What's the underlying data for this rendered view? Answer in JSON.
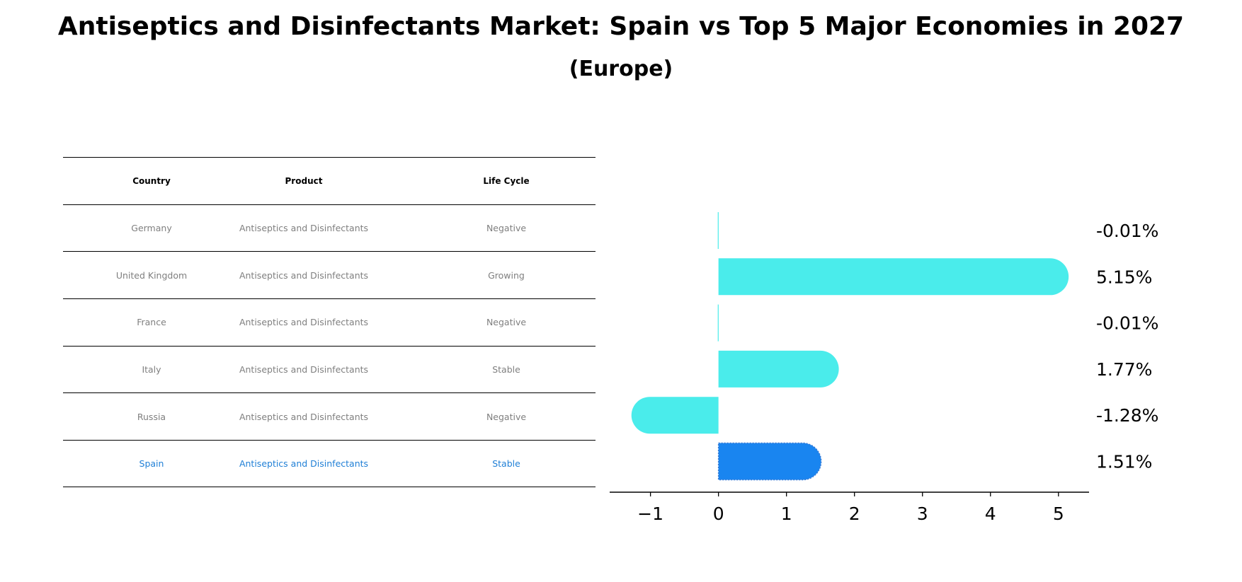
{
  "chart_data": {
    "type": "bar",
    "orientation": "horizontal",
    "title": "Antiseptics and Disinfectants Market: Spain vs Top 5 Major Economies in 2027",
    "subtitle": "(Europe)",
    "categories": [
      "Germany",
      "United Kingdom",
      "France",
      "Italy",
      "Russia",
      "Spain"
    ],
    "values": [
      -0.01,
      5.15,
      -0.01,
      1.77,
      -1.28,
      1.51
    ],
    "value_labels": [
      "-0.01%",
      "5.15%",
      "-0.01%",
      "1.77%",
      "-1.28%",
      "1.51%"
    ],
    "highlight": "Spain",
    "xlim": [
      -1.6,
      5.45
    ],
    "xticks": [
      -1,
      0,
      1,
      2,
      3,
      4,
      5
    ],
    "xtick_labels": [
      "−1",
      "0",
      "1",
      "2",
      "3",
      "4",
      "5"
    ],
    "xlabel": "",
    "ylabel": "",
    "grid": false,
    "colors": {
      "bar": "#4aeceb",
      "highlight": "#1985f0",
      "table_text": "#7f7f7f",
      "highlight_text": "#1f7fd6"
    }
  },
  "table": {
    "headers": [
      "Country",
      "Product",
      "Life Cycle"
    ],
    "rows": [
      [
        "Germany",
        "Antiseptics and Disinfectants",
        "Negative"
      ],
      [
        "United Kingdom",
        "Antiseptics and Disinfectants",
        "Growing"
      ],
      [
        "France",
        "Antiseptics and Disinfectants",
        "Negative"
      ],
      [
        "Italy",
        "Antiseptics and Disinfectants",
        "Stable"
      ],
      [
        "Russia",
        "Antiseptics and Disinfectants",
        "Negative"
      ],
      [
        "Spain",
        "Antiseptics and Disinfectants",
        "Stable"
      ]
    ]
  }
}
